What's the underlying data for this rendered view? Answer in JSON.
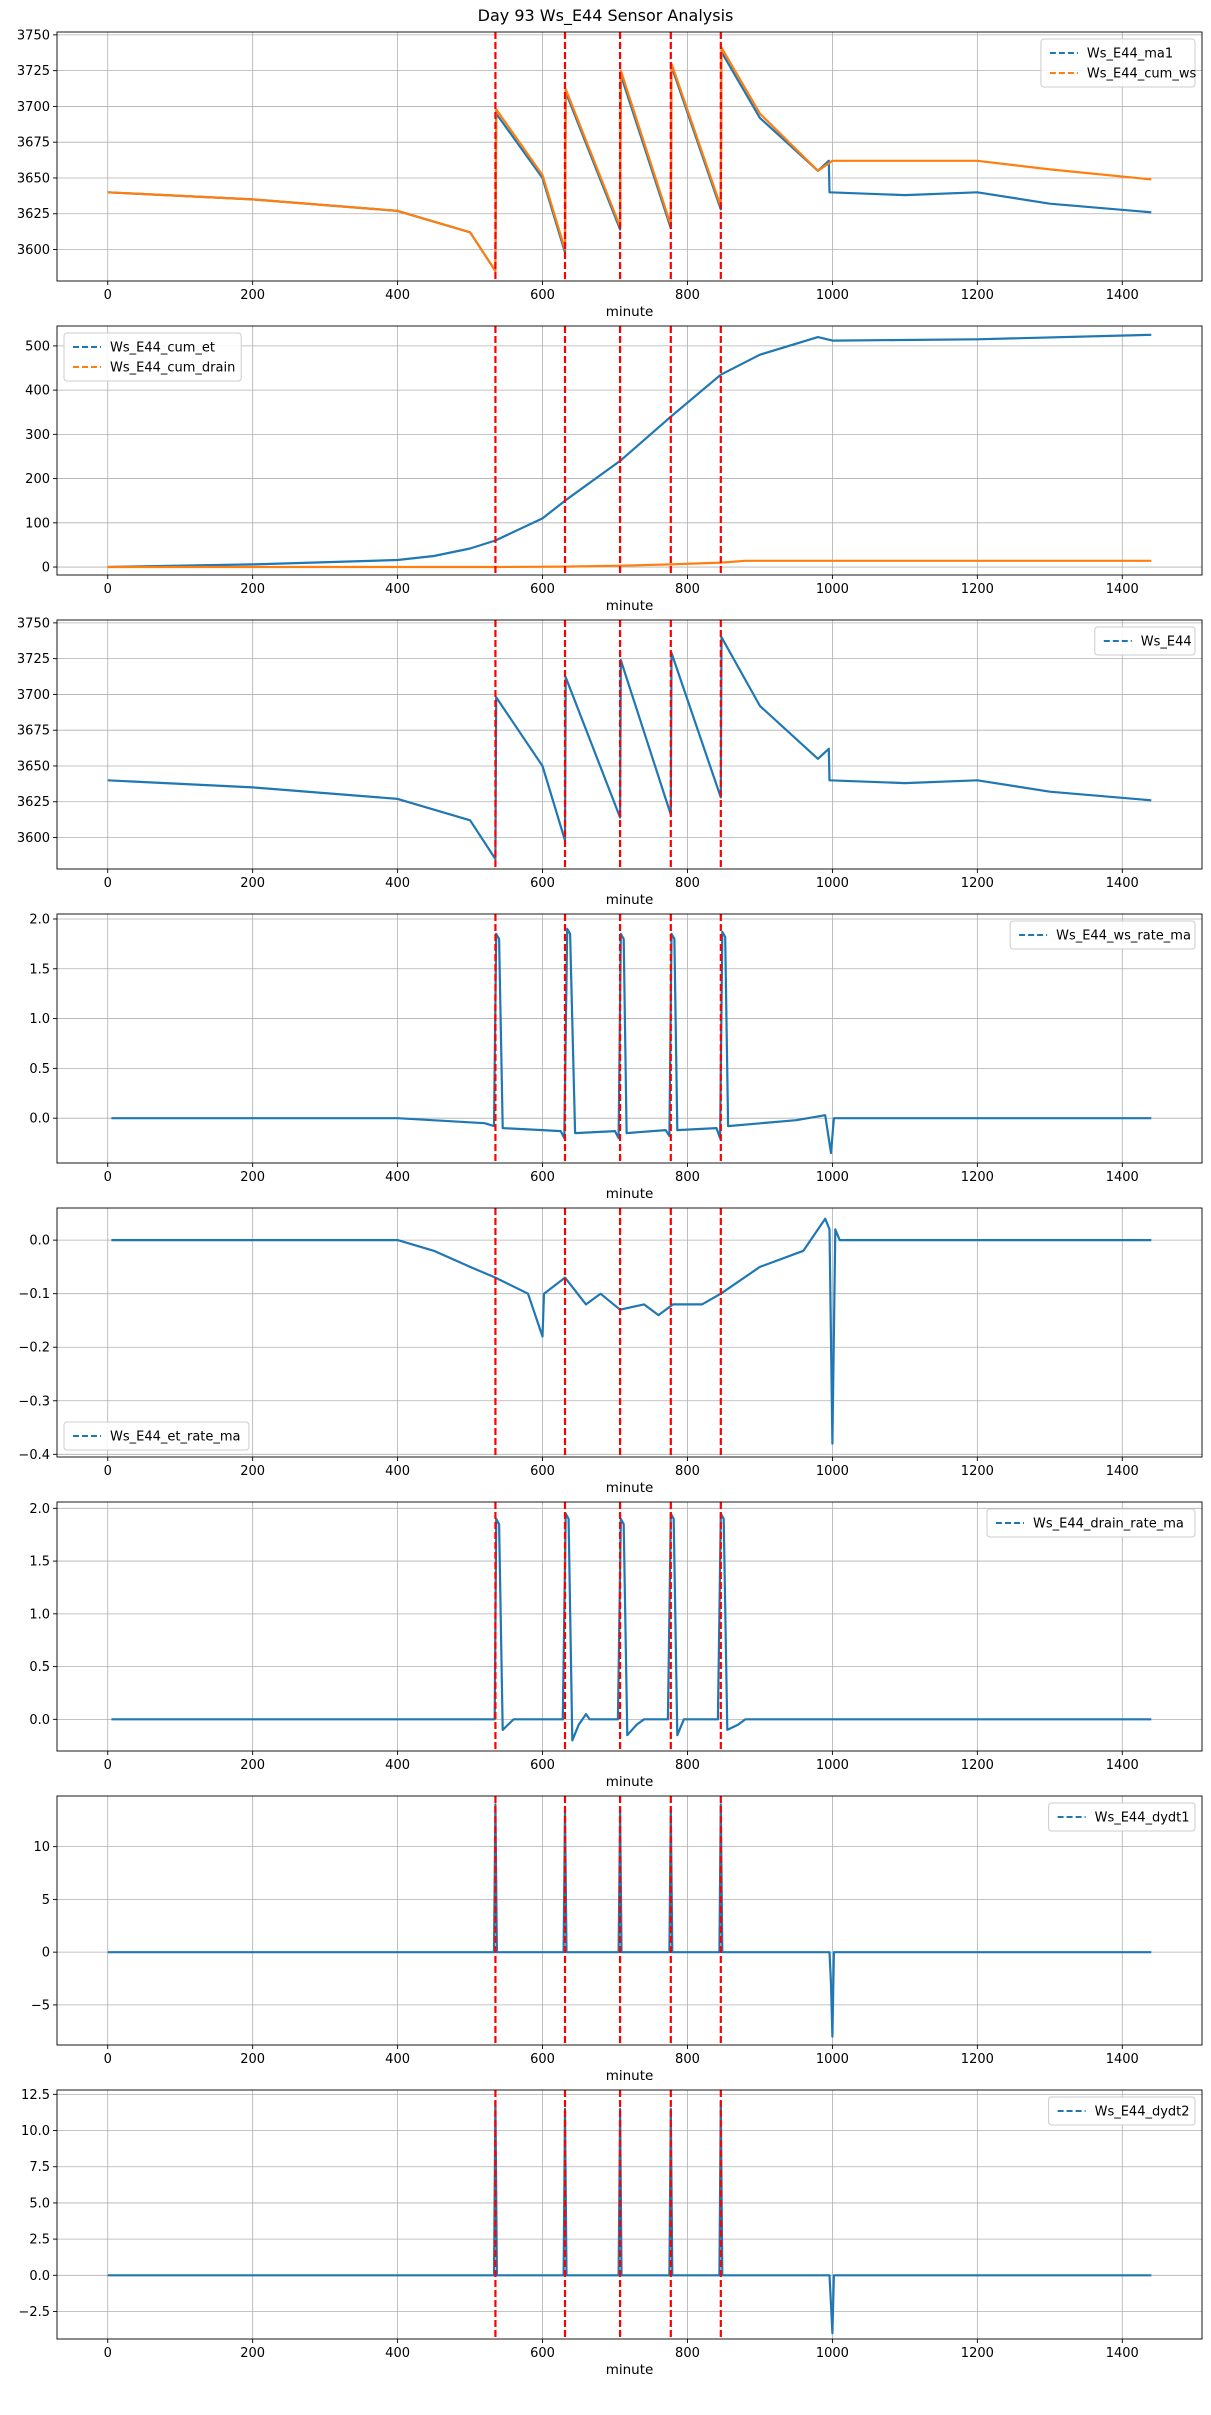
{
  "title": "Day 93 Ws_E44 Sensor Analysis",
  "colors": {
    "blue": "#1f77b4",
    "orange": "#ff7f0e",
    "event": "#ff0000",
    "grid": "#b0b0b0"
  },
  "chart_data": [
    {
      "type": "line",
      "xlabel": "minute",
      "xlim": [
        -70,
        1510
      ],
      "ylim": [
        3578,
        3752
      ],
      "xticks": [
        0,
        200,
        400,
        600,
        800,
        1000,
        1200,
        1400
      ],
      "yticks": [
        3600,
        3625,
        3650,
        3675,
        3700,
        3725,
        3750
      ],
      "legend_loc": "top-right",
      "vlines": [
        535,
        631,
        707,
        777,
        846
      ],
      "series": [
        {
          "name": "Ws_E44_ma1",
          "color": "#1f77b4",
          "x": [
            0,
            200,
            400,
            500,
            535,
            536,
            600,
            631,
            632,
            707,
            708,
            777,
            778,
            846,
            847,
            900,
            980,
            995,
            996,
            1100,
            1200,
            1300,
            1440
          ],
          "y": [
            3640,
            3635,
            3627,
            3612,
            3585,
            3695,
            3650,
            3598,
            3710,
            3614,
            3722,
            3615,
            3728,
            3628,
            3738,
            3692,
            3655,
            3662,
            3640,
            3638,
            3640,
            3632,
            3626
          ]
        },
        {
          "name": "Ws_E44_cum_ws",
          "color": "#ff7f0e",
          "x": [
            0,
            200,
            400,
            500,
            535,
            536,
            600,
            631,
            632,
            707,
            708,
            777,
            778,
            846,
            847,
            900,
            980,
            1000,
            1100,
            1200,
            1300,
            1440
          ],
          "y": [
            3640,
            3635,
            3627,
            3612,
            3585,
            3698,
            3652,
            3600,
            3712,
            3616,
            3725,
            3617,
            3730,
            3630,
            3741,
            3695,
            3655,
            3662,
            3662,
            3662,
            3656,
            3649
          ]
        }
      ]
    },
    {
      "type": "line",
      "xlabel": "minute",
      "xlim": [
        -70,
        1510
      ],
      "ylim": [
        -18,
        545
      ],
      "xticks": [
        0,
        200,
        400,
        600,
        800,
        1000,
        1200,
        1400
      ],
      "yticks": [
        0,
        100,
        200,
        300,
        400,
        500
      ],
      "legend_loc": "top-left",
      "vlines": [
        535,
        631,
        707,
        777,
        846
      ],
      "series": [
        {
          "name": "Ws_E44_cum_et",
          "color": "#1f77b4",
          "x": [
            0,
            200,
            400,
            450,
            500,
            535,
            600,
            631,
            707,
            777,
            846,
            900,
            980,
            1000,
            1200,
            1440
          ],
          "y": [
            0,
            6,
            16,
            25,
            42,
            60,
            110,
            150,
            240,
            340,
            435,
            480,
            520,
            512,
            515,
            525
          ]
        },
        {
          "name": "Ws_E44_cum_drain",
          "color": "#ff7f0e",
          "x": [
            0,
            535,
            631,
            707,
            777,
            846,
            880,
            1440
          ],
          "y": [
            0,
            0,
            1,
            3,
            6,
            10,
            14,
            14
          ]
        }
      ]
    },
    {
      "type": "line",
      "xlabel": "minute",
      "xlim": [
        -70,
        1510
      ],
      "ylim": [
        3578,
        3752
      ],
      "xticks": [
        0,
        200,
        400,
        600,
        800,
        1000,
        1200,
        1400
      ],
      "yticks": [
        3600,
        3625,
        3650,
        3675,
        3700,
        3725,
        3750
      ],
      "legend_loc": "top-right",
      "vlines": [
        535,
        631,
        707,
        777,
        846
      ],
      "series": [
        {
          "name": "Ws_E44",
          "color": "#1f77b4",
          "x": [
            0,
            200,
            400,
            500,
            535,
            536,
            600,
            631,
            632,
            707,
            708,
            777,
            778,
            846,
            847,
            900,
            980,
            995,
            996,
            1100,
            1200,
            1300,
            1440
          ],
          "y": [
            3640,
            3635,
            3627,
            3612,
            3585,
            3698,
            3650,
            3598,
            3712,
            3614,
            3724,
            3616,
            3729,
            3628,
            3740,
            3692,
            3655,
            3662,
            3640,
            3638,
            3640,
            3632,
            3626
          ]
        }
      ]
    },
    {
      "type": "line",
      "xlabel": "minute",
      "xlim": [
        -70,
        1510
      ],
      "ylim": [
        -0.45,
        2.05
      ],
      "xticks": [
        0,
        200,
        400,
        600,
        800,
        1000,
        1200,
        1400
      ],
      "yticks": [
        0.0,
        0.5,
        1.0,
        1.5,
        2.0
      ],
      "legend_loc": "top-right",
      "vlines": [
        535,
        631,
        707,
        777,
        846
      ],
      "series": [
        {
          "name": "Ws_E44_ws_rate_ma",
          "color": "#1f77b4",
          "x": [
            5,
            400,
            520,
            533,
            536,
            540,
            545,
            600,
            625,
            630,
            634,
            638,
            645,
            700,
            705,
            708,
            712,
            716,
            770,
            775,
            778,
            782,
            786,
            840,
            845,
            848,
            852,
            856,
            950,
            990,
            998,
            1002,
            1010,
            1440
          ],
          "y": [
            0,
            0,
            -0.05,
            -0.08,
            1.85,
            1.8,
            -0.1,
            -0.12,
            -0.13,
            -0.2,
            1.9,
            1.85,
            -0.15,
            -0.13,
            -0.2,
            1.85,
            1.8,
            -0.15,
            -0.12,
            -0.18,
            1.85,
            1.8,
            -0.12,
            -0.1,
            -0.2,
            1.87,
            1.82,
            -0.08,
            -0.02,
            0.03,
            -0.35,
            0.0,
            0.0,
            0.0
          ]
        }
      ]
    },
    {
      "type": "line",
      "xlabel": "minute",
      "xlim": [
        -70,
        1510
      ],
      "ylim": [
        -0.405,
        0.06
      ],
      "xticks": [
        0,
        200,
        400,
        600,
        800,
        1000,
        1200,
        1400
      ],
      "yticks": [
        -0.4,
        -0.3,
        -0.2,
        -0.1,
        0.0
      ],
      "legend_loc": "bottom-left",
      "vlines": [
        535,
        631,
        707,
        777,
        846
      ],
      "series": [
        {
          "name": "Ws_E44_et_rate_ma",
          "color": "#1f77b4",
          "x": [
            5,
            400,
            450,
            500,
            535,
            580,
            600,
            602,
            631,
            660,
            680,
            707,
            740,
            760,
            780,
            820,
            846,
            900,
            960,
            990,
            996,
            1000,
            1004,
            1010,
            1100,
            1440
          ],
          "y": [
            0,
            0,
            -0.02,
            -0.05,
            -0.07,
            -0.1,
            -0.18,
            -0.1,
            -0.07,
            -0.12,
            -0.1,
            -0.13,
            -0.12,
            -0.14,
            -0.12,
            -0.12,
            -0.1,
            -0.05,
            -0.02,
            0.04,
            0.02,
            -0.38,
            0.02,
            0.0,
            0.0,
            0.0
          ]
        }
      ]
    },
    {
      "type": "line",
      "xlabel": "minute",
      "xlim": [
        -70,
        1510
      ],
      "ylim": [
        -0.3,
        2.06
      ],
      "xticks": [
        0,
        200,
        400,
        600,
        800,
        1000,
        1200,
        1400
      ],
      "yticks": [
        0.0,
        0.5,
        1.0,
        1.5,
        2.0
      ],
      "legend_loc": "top-right",
      "vlines": [
        535,
        631,
        707,
        777,
        846
      ],
      "series": [
        {
          "name": "Ws_E44_drain_rate_ma",
          "color": "#1f77b4",
          "x": [
            5,
            530,
            534,
            536,
            540,
            545,
            560,
            570,
            628,
            632,
            636,
            641,
            650,
            660,
            665,
            704,
            708,
            712,
            717,
            730,
            740,
            773,
            777,
            781,
            786,
            795,
            842,
            846,
            850,
            855,
            870,
            880,
            1440
          ],
          "y": [
            0,
            0,
            0,
            1.9,
            1.85,
            -0.1,
            0.0,
            0.0,
            0.0,
            1.95,
            1.9,
            -0.2,
            -0.05,
            0.05,
            0.0,
            0.0,
            1.9,
            1.85,
            -0.15,
            -0.05,
            0.0,
            0.0,
            1.95,
            1.9,
            -0.15,
            0.0,
            0.0,
            1.95,
            1.9,
            -0.1,
            -0.05,
            0.0,
            0.0
          ]
        }
      ]
    },
    {
      "type": "line",
      "xlabel": "minute",
      "xlim": [
        -70,
        1510
      ],
      "ylim": [
        -8.8,
        14.8
      ],
      "xticks": [
        0,
        200,
        400,
        600,
        800,
        1000,
        1200,
        1400
      ],
      "yticks": [
        -5,
        0,
        5,
        10
      ],
      "legend_loc": "top-right",
      "vlines": [
        535,
        631,
        707,
        777,
        846
      ],
      "series": [
        {
          "name": "Ws_E44_dydt1",
          "color": "#1f77b4",
          "x": [
            0,
            533,
            535,
            537,
            629,
            631,
            633,
            705,
            707,
            709,
            775,
            777,
            779,
            844,
            846,
            848,
            996,
            998,
            1000,
            1002,
            1440
          ],
          "y": [
            0,
            0,
            14,
            0,
            0,
            13.5,
            0,
            0,
            13.5,
            0,
            0,
            13.5,
            0,
            0,
            14,
            0,
            0,
            -3,
            -8,
            0,
            0
          ]
        }
      ]
    },
    {
      "type": "line",
      "xlabel": "minute",
      "xlim": [
        -70,
        1510
      ],
      "ylim": [
        -4.4,
        12.8
      ],
      "xticks": [
        0,
        200,
        400,
        600,
        800,
        1000,
        1200,
        1400
      ],
      "yticks": [
        -2.5,
        0.0,
        2.5,
        5.0,
        7.5,
        10.0,
        12.5
      ],
      "legend_loc": "top-right",
      "vlines": [
        535,
        631,
        707,
        777,
        846
      ],
      "series": [
        {
          "name": "Ws_E44_dydt2",
          "color": "#1f77b4",
          "x": [
            0,
            533,
            535,
            537,
            629,
            631,
            633,
            705,
            707,
            709,
            775,
            777,
            779,
            844,
            846,
            848,
            996,
            998,
            1000,
            1002,
            1440
          ],
          "y": [
            0,
            0,
            12,
            0,
            0,
            11.5,
            0,
            0,
            11.5,
            0,
            0,
            11.5,
            0,
            0,
            12,
            0,
            0,
            -2,
            -4,
            0,
            0
          ]
        }
      ]
    }
  ]
}
